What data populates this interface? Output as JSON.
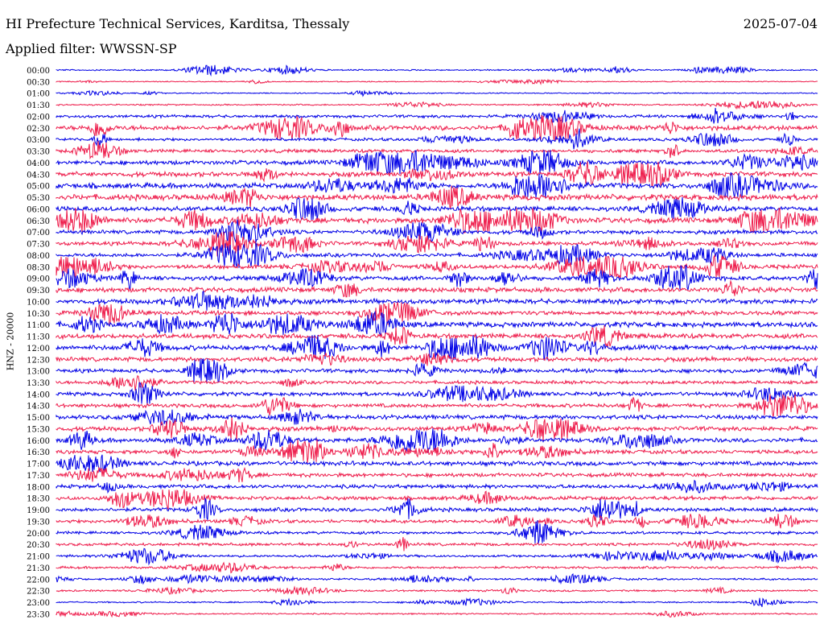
{
  "header": {
    "title": "HI Prefecture Technical Services, Karditsa, Thessaly",
    "date": "2025-07-04",
    "filter": "Applied filter: WWSSN-SP"
  },
  "chart_data": {
    "type": "line",
    "chart_kind": "helicorder seismogram",
    "ylabel": "HNZ - 20000",
    "rows": [
      "00:00",
      "00:30",
      "01:00",
      "01:30",
      "02:00",
      "02:30",
      "03:00",
      "03:30",
      "04:00",
      "04:30",
      "05:00",
      "05:30",
      "06:00",
      "06:30",
      "07:00",
      "07:30",
      "08:00",
      "08:30",
      "09:00",
      "09:30",
      "10:00",
      "10:30",
      "11:00",
      "11:30",
      "12:00",
      "12:30",
      "13:00",
      "13:30",
      "14:00",
      "14:30",
      "15:00",
      "15:30",
      "16:00",
      "16:30",
      "17:00",
      "17:30",
      "18:00",
      "18:30",
      "19:00",
      "19:30",
      "20:00",
      "20:30",
      "21:00",
      "21:30",
      "22:00",
      "22:30",
      "23:00",
      "23:30"
    ],
    "row_colors": [
      "#0000e6",
      "#ee1c4b"
    ],
    "relative_amplitude": [
      0.15,
      0.1,
      0.12,
      0.15,
      0.3,
      0.5,
      0.3,
      0.35,
      0.45,
      0.5,
      0.55,
      0.6,
      0.5,
      0.55,
      0.4,
      0.4,
      0.4,
      0.45,
      0.45,
      0.5,
      0.5,
      0.45,
      0.55,
      0.5,
      0.5,
      0.45,
      0.4,
      0.35,
      0.4,
      0.4,
      0.45,
      0.45,
      0.45,
      0.4,
      0.45,
      0.4,
      0.4,
      0.4,
      0.4,
      0.35,
      0.3,
      0.3,
      0.25,
      0.25,
      0.2,
      0.2,
      0.15,
      0.15
    ],
    "grid": false
  }
}
